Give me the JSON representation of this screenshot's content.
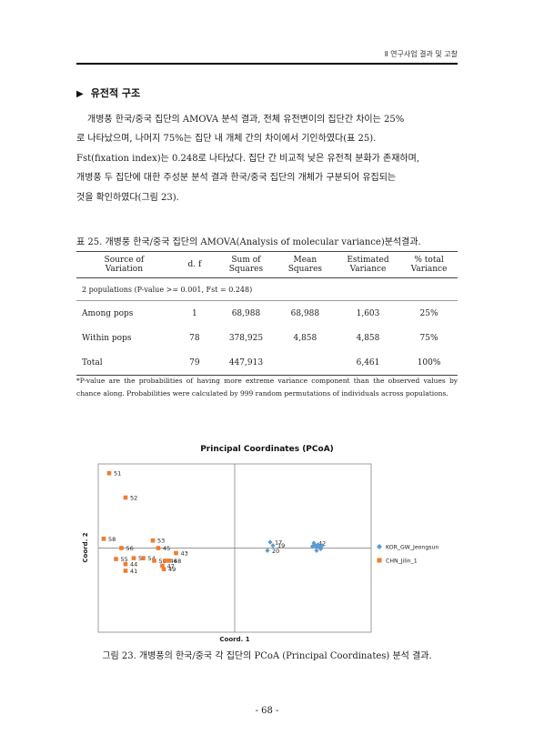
{
  "header": {
    "text": "Ⅱ 연구사업 결과 및 고찰"
  },
  "section": {
    "marker": "▶",
    "title": "유전적 구조"
  },
  "paragraph": [
    "개병풍 한국/중국 집단의 AMOVA 분석 결과, 전체 유전변이의 집단간 차이는 25%",
    "로 나타났으며, 나머지 75%는 집단 내 개체 간의 차이에서 기인하였다(표 25).",
    "Fst(fixation index)는 0.248로 나타났다. 집단 간 비교적 낮은 유전적 분화가 존재하며,",
    "개병풍 두 집단에 대한 주성분 분석 결과 한국/중국 집단의 개체가 구분되어 유집되는",
    "것을 확인하였다(그림 23)."
  ],
  "table": {
    "caption": "표 25. 개병풍 한국/중국 집단의 AMOVA(Analysis of molecular variance)분석결과.",
    "headers": [
      "Source of\nVariation",
      "d. f",
      "Sum of\nSquares",
      "Mean\nSquares",
      "Estimated\nVariance",
      "% total\nVariance"
    ],
    "subheader": "2 populations (P-value >= 0.001, Fst = 0.248)",
    "rows": [
      [
        "Among pops",
        "1",
        "68,988",
        "68,988",
        "1,603",
        "25%"
      ],
      [
        "Within pops",
        "78",
        "378,925",
        "4,858",
        "4,858",
        "75%"
      ],
      [
        "Total",
        "79",
        "447,913",
        "",
        "6,461",
        "100%"
      ]
    ],
    "footnote": "*P-value are the probabilities of having more extreme variance component than the observed values by chance along. Probabilities were calculated by 999 random permutations of individuals across populations."
  },
  "chart_data": {
    "type": "scatter",
    "title": "Principal Coordinates (PCoA)",
    "xlabel": "Coord. 1",
    "ylabel": "Coord. 2",
    "xlim": [
      -1,
      1
    ],
    "ylim": [
      -1,
      1
    ],
    "grid": false,
    "legend": "right",
    "series": [
      {
        "name": "KOR_GW_Jeongsun",
        "color": "#5b9bd5",
        "marker": "diamond",
        "points": [
          {
            "label": "17",
            "x": 0.26,
            "y": 0.07
          },
          {
            "label": "19",
            "x": 0.28,
            "y": 0.03
          },
          {
            "label": "20",
            "x": 0.24,
            "y": -0.03
          },
          {
            "label": "42",
            "x": 0.58,
            "y": 0.06
          },
          {
            "label": "",
            "x": 0.59,
            "y": 0.03
          },
          {
            "label": "",
            "x": 0.6,
            "y": 0.01
          },
          {
            "label": "",
            "x": 0.61,
            "y": 0.04
          },
          {
            "label": "",
            "x": 0.62,
            "y": 0.02
          },
          {
            "label": "",
            "x": 0.63,
            "y": -0.01
          },
          {
            "label": "",
            "x": 0.64,
            "y": 0.03
          },
          {
            "label": "",
            "x": 0.6,
            "y": -0.03
          },
          {
            "label": "",
            "x": 0.57,
            "y": 0.02
          }
        ]
      },
      {
        "name": "CHN_Jilin_1",
        "color": "#ed7d31",
        "marker": "square",
        "points": [
          {
            "label": "51",
            "x": -0.92,
            "y": 0.89
          },
          {
            "label": "52",
            "x": -0.8,
            "y": 0.6
          },
          {
            "label": "58",
            "x": -0.96,
            "y": 0.11
          },
          {
            "label": "53",
            "x": -0.6,
            "y": 0.09
          },
          {
            "label": "56",
            "x": -0.83,
            "y": 0.0
          },
          {
            "label": "45",
            "x": -0.56,
            "y": 0.0
          },
          {
            "label": "43",
            "x": -0.43,
            "y": -0.06
          },
          {
            "label": "55",
            "x": -0.87,
            "y": -0.13
          },
          {
            "label": "57",
            "x": -0.74,
            "y": -0.12
          },
          {
            "label": "54",
            "x": -0.67,
            "y": -0.12
          },
          {
            "label": "50",
            "x": -0.59,
            "y": -0.15
          },
          {
            "label": "46",
            "x": -0.51,
            "y": -0.15
          },
          {
            "label": "48",
            "x": -0.48,
            "y": -0.15
          },
          {
            "label": "44",
            "x": -0.8,
            "y": -0.19
          },
          {
            "label": "47",
            "x": -0.53,
            "y": -0.21
          },
          {
            "label": "49",
            "x": -0.52,
            "y": -0.25
          },
          {
            "label": "41",
            "x": -0.8,
            "y": -0.27
          }
        ]
      }
    ]
  },
  "figure": {
    "caption": "그림 23. 개병풍의 한국/중국 각 집단의 PCoA (Principal Coordinates) 분석 결과."
  },
  "page": {
    "number": "- 68 -"
  }
}
